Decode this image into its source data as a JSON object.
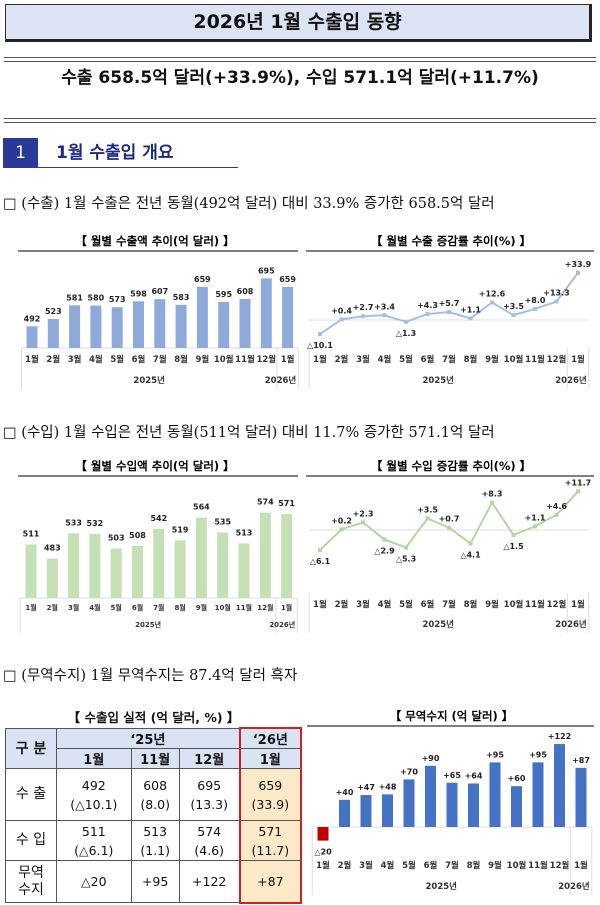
{
  "title": "2026년 1월 수출입 동향",
  "headline": "수출 658.5억 달러(+33.9%),  수입 571.1억 달러(+11.7%)",
  "section": {
    "number": "1",
    "title": "1월 수출입 개요"
  },
  "bullets": [
    "□ (수출) 1월 수출은 전년 동월(492억 달러) 대비 33.9% 증가한 658.5억 달러",
    "□ (수입) 1월 수입은 전년 동월(511억 달러) 대비 11.7% 증가한 571.1억 달러",
    "□ (무역수지) 1월 무역수지는 87.4억 달러 흑자"
  ],
  "chart_data": [
    {
      "type": "bar",
      "title": "【 월별 수출액 추이(억 달러) 】",
      "categories": [
        "1월",
        "2월",
        "3월",
        "4월",
        "5월",
        "6월",
        "7월",
        "8월",
        "9월",
        "10월",
        "11월",
        "12월",
        "1월"
      ],
      "years": [
        "2025년",
        "2026년"
      ],
      "values": [
        492,
        523,
        581,
        580,
        573,
        598,
        607,
        583,
        659,
        595,
        608,
        695,
        659
      ],
      "labels": [
        "492",
        "523",
        "581",
        "580",
        "573",
        "598",
        "607",
        "583",
        "659",
        "595",
        "608",
        "695",
        "659"
      ],
      "ylim": [
        400,
        720
      ],
      "color": "#8eaadb",
      "grid": false
    },
    {
      "type": "line",
      "title": "【 월별 수출 증감률 추이(%) 】",
      "categories": [
        "1월",
        "2월",
        "3월",
        "4월",
        "5월",
        "6월",
        "7월",
        "8월",
        "9월",
        "10월",
        "11월",
        "12월",
        "1월"
      ],
      "years": [
        "2025년",
        "2026년"
      ],
      "values": [
        -10.1,
        0.4,
        2.7,
        3.4,
        -1.3,
        4.3,
        5.7,
        1.1,
        12.6,
        3.5,
        8.0,
        13.3,
        33.9
      ],
      "labels": [
        "△10.1",
        "+0.4",
        "+2.7",
        "+3.4",
        "△1.3",
        "+4.3",
        "+5.7",
        "+1.1",
        "+12.6",
        "+3.5",
        "+8.0",
        "+13.3",
        "+33.9"
      ],
      "color": "#a9bfe0",
      "grid": false
    },
    {
      "type": "bar",
      "title": "【 월별 수입액 추이(억 달러) 】",
      "categories": [
        "1월",
        "2월",
        "3월",
        "4월",
        "5월",
        "6월",
        "7월",
        "8월",
        "9월",
        "10월",
        "11월",
        "12월",
        "1월"
      ],
      "years": [
        "2025년",
        "2026년"
      ],
      "values": [
        511,
        483,
        533,
        532,
        503,
        508,
        542,
        519,
        564,
        535,
        513,
        574,
        571
      ],
      "labels": [
        "511",
        "483",
        "533",
        "532",
        "503",
        "508",
        "542",
        "519",
        "564",
        "535",
        "513",
        "574",
        "571"
      ],
      "ylim": [
        405,
        600
      ],
      "color": "#c5e0b4",
      "grid": false
    },
    {
      "type": "line",
      "title": "【 월별 수입 증감률 추이(%) 】",
      "categories": [
        "1월",
        "2월",
        "3월",
        "4월",
        "5월",
        "6월",
        "7월",
        "8월",
        "9월",
        "10월",
        "11월",
        "12월",
        "1월"
      ],
      "years": [
        "2025년",
        "2026년"
      ],
      "values": [
        -6.1,
        0.2,
        2.3,
        -2.9,
        -5.3,
        3.5,
        0.7,
        -4.1,
        8.3,
        -1.5,
        1.1,
        4.6,
        11.7
      ],
      "labels": [
        "△6.1",
        "+0.2",
        "+2.3",
        "△2.9",
        "△5.3",
        "+3.5",
        "+0.7",
        "△4.1",
        "+8.3",
        "△1.5",
        "+1.1",
        "+4.6",
        "+11.7"
      ],
      "color": "#b5d6a0",
      "grid": false
    },
    {
      "type": "bar",
      "title": "【 무역수지 (억 달러) 】",
      "categories": [
        "1월",
        "2월",
        "3월",
        "4월",
        "5월",
        "6월",
        "7월",
        "8월",
        "9월",
        "10월",
        "11월",
        "12월",
        "1월"
      ],
      "years": [
        "2025년",
        "2026년"
      ],
      "values": [
        -20,
        40,
        47,
        48,
        70,
        90,
        65,
        64,
        95,
        60,
        95,
        122,
        87
      ],
      "labels": [
        "△20",
        "+40",
        "+47",
        "+48",
        "+70",
        "+90",
        "+65",
        "+64",
        "+95",
        "+60",
        "+95",
        "+122",
        "+87"
      ],
      "color": "#4472c4",
      "negative_color": "#c00000",
      "grid": false
    }
  ],
  "table": {
    "caption": "【 수출입 실적 (억 달러, %) 】",
    "header_label": "구 분",
    "years": [
      "‘25년",
      "‘26년"
    ],
    "months": [
      "1월",
      "11월",
      "12월",
      "1월"
    ],
    "rows": [
      {
        "label": "수 출",
        "values": [
          "492",
          "608",
          "695",
          "659"
        ],
        "rates": [
          "(△10.1)",
          "(8.0)",
          "(13.3)",
          "(33.9)"
        ]
      },
      {
        "label": "수 입",
        "values": [
          "511",
          "513",
          "574",
          "571"
        ],
        "rates": [
          "(△6.1)",
          "(1.1)",
          "(4.6)",
          "(11.7)"
        ]
      },
      {
        "label": "무역\n수지",
        "values": [
          "△20",
          "+95",
          "+122",
          "+87"
        ]
      }
    ]
  }
}
